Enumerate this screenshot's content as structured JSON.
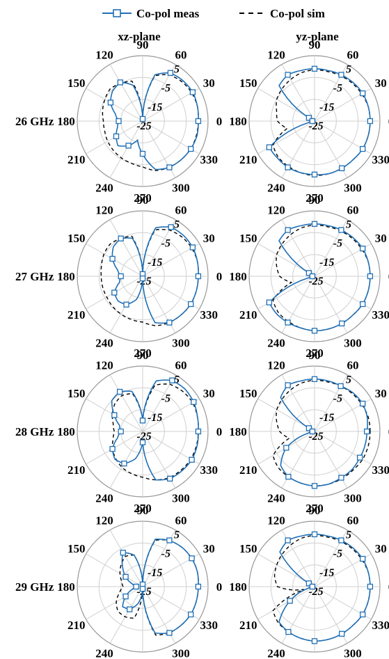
{
  "legend": [
    {
      "label": "Co-pol meas",
      "color": "#1f6fb5",
      "style": "solid-square-markers"
    },
    {
      "label": "Co-pol sim",
      "color": "#000000",
      "style": "dashed"
    }
  ],
  "columns": [
    "xz-plane",
    "yz-plane"
  ],
  "rows": [
    "26 GHz",
    "27 GHz",
    "28 GHz",
    "29 GHz"
  ],
  "chart_data": {
    "type": "polar",
    "angle_ticks_deg": [
      0,
      30,
      60,
      90,
      120,
      150,
      180,
      210,
      240,
      270,
      300,
      330
    ],
    "angle_labels": [
      "0",
      "30",
      "60",
      "90",
      "120",
      "150",
      "180",
      "210",
      "240",
      "270",
      "300",
      "330"
    ],
    "radial_ticks_db": [
      -25,
      -15,
      -5,
      5
    ],
    "radial_labels": [
      "-25",
      "-15",
      "-5",
      "5"
    ],
    "r_range_db": [
      -25,
      5
    ],
    "series_names": [
      "Co-pol meas",
      "Co-pol sim"
    ],
    "subplots": [
      {
        "row": "26 GHz",
        "plane": "xz-plane",
        "meas": {
          "angle_deg": [
            0,
            15,
            30,
            45,
            60,
            75,
            90,
            105,
            120,
            135,
            150,
            165,
            180,
            195,
            210,
            225,
            240,
            255,
            270,
            285,
            300,
            315,
            330,
            345
          ],
          "gain_db": [
            0.5,
            1,
            1.5,
            1.2,
            0.5,
            -3,
            -24,
            -8,
            -4.5,
            -5.5,
            -8,
            -12,
            -14,
            -13,
            -11,
            -9,
            -12,
            -16,
            -10,
            -2,
            -0.5,
            0,
            0.5,
            0.8
          ]
        },
        "sim": {
          "angle_deg": [
            0,
            15,
            30,
            45,
            60,
            75,
            90,
            105,
            120,
            135,
            150,
            165,
            180,
            195,
            210,
            225,
            240,
            255,
            270,
            285,
            300,
            315,
            330,
            345
          ],
          "gain_db": [
            0.5,
            1,
            1,
            0.5,
            -0.5,
            -3.5,
            -24,
            -6,
            -5,
            -4,
            -5,
            -6,
            -7,
            -7,
            -6.5,
            -6,
            -5.5,
            -5,
            -4,
            -1.5,
            -0.5,
            0,
            0.5,
            0.5
          ]
        }
      },
      {
        "row": "26 GHz",
        "plane": "yz-plane",
        "meas": {
          "angle_deg": [
            0,
            15,
            30,
            45,
            60,
            75,
            90,
            105,
            120,
            135,
            150,
            165,
            180,
            195,
            210,
            225,
            240,
            255,
            270,
            285,
            300,
            315,
            330,
            345
          ],
          "gain_db": [
            0.5,
            0.5,
            0.5,
            0,
            -0.5,
            -1,
            -1,
            -1,
            -0.5,
            -2,
            -22,
            -24,
            -24,
            -22,
            -1,
            -1,
            -0.5,
            -0.5,
            -0.5,
            0,
            0,
            0,
            0.5,
            0.5
          ]
        },
        "sim": {
          "angle_deg": [
            0,
            15,
            30,
            45,
            60,
            75,
            90,
            105,
            120,
            135,
            150,
            165,
            180,
            195,
            210,
            225,
            240,
            255,
            270,
            285,
            300,
            315,
            330,
            345
          ],
          "gain_db": [
            0.5,
            0.5,
            0,
            -0.5,
            -1,
            -1.5,
            -1.5,
            -2,
            -3,
            -4,
            -5,
            -7,
            -8,
            -12,
            -3,
            -1.5,
            -1,
            -0.5,
            0,
            0,
            0,
            0,
            0.5,
            0.5
          ]
        }
      },
      {
        "row": "27 GHz",
        "plane": "xz-plane",
        "meas": {
          "angle_deg": [
            0,
            15,
            30,
            45,
            60,
            75,
            90,
            105,
            120,
            135,
            150,
            165,
            180,
            195,
            210,
            225,
            240,
            255,
            270,
            285,
            300,
            315,
            330,
            345
          ],
          "gain_db": [
            0.5,
            1,
            1.5,
            1.5,
            1,
            -2,
            -24,
            -7,
            -5,
            -6,
            -9,
            -13,
            -15,
            -14,
            -10,
            -9,
            -10,
            -14,
            -24,
            -3,
            -0.5,
            0,
            0.5,
            0.5
          ]
        },
        "sim": {
          "angle_deg": [
            0,
            15,
            30,
            45,
            60,
            75,
            90,
            105,
            120,
            135,
            150,
            165,
            180,
            195,
            210,
            225,
            240,
            255,
            270,
            285,
            300,
            315,
            330,
            345
          ],
          "gain_db": [
            0.5,
            1,
            1,
            0.5,
            -0.5,
            -3,
            -24,
            -6,
            -5,
            -4,
            -4.5,
            -5.5,
            -6,
            -6,
            -6,
            -5.5,
            -5,
            -4.5,
            -4,
            -1.5,
            -0.5,
            0,
            0.5,
            0.5
          ]
        }
      },
      {
        "row": "27 GHz",
        "plane": "yz-plane",
        "meas": {
          "angle_deg": [
            0,
            15,
            30,
            45,
            60,
            75,
            90,
            105,
            120,
            135,
            150,
            165,
            180,
            195,
            210,
            225,
            240,
            255,
            270,
            285,
            300,
            315,
            330,
            345
          ],
          "gain_db": [
            0.5,
            0.5,
            0.5,
            0,
            -0.5,
            -1,
            -1,
            -1,
            -0.5,
            -2,
            -22,
            -24,
            -24,
            -22,
            -1,
            -0.5,
            -0.5,
            -0.5,
            0,
            0,
            0,
            0,
            0.5,
            0.5
          ]
        },
        "sim": {
          "angle_deg": [
            0,
            15,
            30,
            45,
            60,
            75,
            90,
            105,
            120,
            135,
            150,
            165,
            180,
            195,
            210,
            225,
            240,
            255,
            270,
            285,
            300,
            315,
            330,
            345
          ],
          "gain_db": [
            0.5,
            0.5,
            0,
            -0.5,
            -1,
            -1.5,
            -1.5,
            -2,
            -3,
            -4,
            -5,
            -7,
            -9,
            -14,
            -3,
            -1.5,
            -1,
            -0.5,
            0,
            0,
            0,
            0,
            0.5,
            0.5
          ]
        }
      },
      {
        "row": "28 GHz",
        "plane": "xz-plane",
        "meas": {
          "angle_deg": [
            0,
            15,
            30,
            45,
            60,
            75,
            90,
            105,
            120,
            135,
            150,
            165,
            180,
            195,
            210,
            225,
            240,
            255,
            270,
            285,
            300,
            315,
            330,
            345
          ],
          "gain_db": [
            0.5,
            1,
            2,
            2.5,
            2,
            -1,
            -20,
            -6,
            -4,
            -5,
            -10,
            -14,
            -15,
            -13,
            -9,
            -7,
            -8,
            -12,
            -20,
            -2,
            0,
            0.5,
            1,
            0.8
          ]
        },
        "sim": {
          "angle_deg": [
            0,
            15,
            30,
            45,
            60,
            75,
            90,
            105,
            120,
            135,
            150,
            165,
            180,
            195,
            210,
            225,
            240,
            255,
            270,
            285,
            300,
            315,
            330,
            345
          ],
          "gain_db": [
            0.5,
            1,
            1.5,
            1,
            0,
            -3,
            -20,
            -7,
            -6,
            -7,
            -9,
            -11,
            -12,
            -11,
            -9,
            -7.5,
            -6,
            -5,
            -4,
            -2,
            -0.5,
            0,
            0.5,
            0.5
          ]
        }
      },
      {
        "row": "28 GHz",
        "plane": "yz-plane",
        "meas": {
          "angle_deg": [
            0,
            15,
            30,
            45,
            60,
            75,
            90,
            105,
            120,
            135,
            150,
            165,
            180,
            195,
            210,
            225,
            240,
            255,
            270,
            285,
            300,
            315,
            330,
            345
          ],
          "gain_db": [
            -1,
            0,
            0.5,
            0,
            -1,
            -1,
            -1,
            -1,
            -0.5,
            -3,
            -22,
            -24,
            -24,
            -22,
            -10,
            -3,
            -1,
            -0.5,
            0,
            0,
            -0.5,
            -0.5,
            -1,
            -1
          ]
        },
        "sim": {
          "angle_deg": [
            0,
            15,
            30,
            45,
            60,
            75,
            90,
            105,
            120,
            135,
            150,
            165,
            180,
            195,
            210,
            225,
            240,
            255,
            270,
            285,
            300,
            315,
            330,
            345
          ],
          "gain_db": [
            0.5,
            0.5,
            0,
            -0.5,
            -1,
            -1.5,
            -1.5,
            -2,
            -3,
            -4,
            -5,
            -7,
            -9,
            -13,
            -3,
            -1.5,
            -1,
            -0.5,
            0,
            0,
            0,
            0,
            0.5,
            0.5
          ]
        }
      },
      {
        "row": "29 GHz",
        "plane": "xz-plane",
        "meas": {
          "angle_deg": [
            0,
            15,
            30,
            45,
            60,
            75,
            90,
            105,
            120,
            135,
            150,
            165,
            180,
            195,
            210,
            225,
            240,
            255,
            270,
            285,
            300,
            315,
            330,
            345
          ],
          "gain_db": [
            0.5,
            1,
            1,
            0.5,
            -0.5,
            -2.5,
            -24,
            -10,
            -7,
            -12,
            -16,
            -20,
            -22,
            -20,
            -16,
            -12,
            -13,
            -17,
            -24,
            -3,
            -0.5,
            0,
            0.5,
            0.5
          ]
        },
        "sim": {
          "angle_deg": [
            0,
            15,
            30,
            45,
            60,
            75,
            90,
            105,
            120,
            135,
            150,
            165,
            180,
            195,
            210,
            225,
            240,
            255,
            270,
            285,
            300,
            315,
            330,
            345
          ],
          "gain_db": [
            0.5,
            1,
            1,
            0.5,
            -0.5,
            -3,
            -24,
            -10,
            -9,
            -11,
            -13,
            -15,
            -16,
            -14,
            -11,
            -9,
            -9,
            -10,
            -24,
            -2,
            -0.5,
            0,
            0.5,
            0.5
          ]
        }
      },
      {
        "row": "29 GHz",
        "plane": "yz-plane",
        "meas": {
          "angle_deg": [
            0,
            15,
            30,
            45,
            60,
            75,
            90,
            105,
            120,
            135,
            150,
            165,
            180,
            195,
            210,
            225,
            240,
            255,
            270,
            285,
            300,
            315,
            330,
            345
          ],
          "gain_db": [
            0.5,
            0.5,
            0.5,
            0,
            -0.5,
            -1,
            -1,
            -1,
            -0.5,
            -2.5,
            -22,
            -24,
            -24,
            -22,
            -12,
            -2,
            -1,
            -0.5,
            0,
            0,
            0,
            0,
            0.5,
            0.5
          ]
        },
        "sim": {
          "angle_deg": [
            0,
            15,
            30,
            45,
            60,
            75,
            90,
            105,
            120,
            135,
            150,
            165,
            180,
            195,
            210,
            225,
            240,
            255,
            270,
            285,
            300,
            315,
            330,
            345
          ],
          "gain_db": [
            0.5,
            0.5,
            0,
            -0.5,
            -1,
            -1.5,
            -1.5,
            -2,
            -3,
            -4,
            -5,
            -6,
            -8,
            -20,
            -3,
            -1.5,
            -1,
            -0.5,
            0,
            0,
            0,
            0,
            0.5,
            0.5
          ]
        }
      }
    ]
  }
}
